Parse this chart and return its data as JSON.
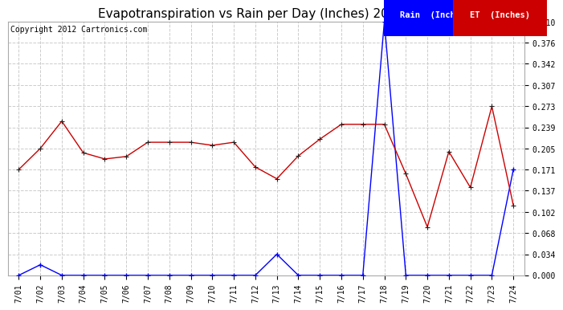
{
  "title": "Evapotranspiration vs Rain per Day (Inches) 20120725",
  "copyright": "Copyright 2012 Cartronics.com",
  "dates": [
    "7/01",
    "7/02",
    "7/03",
    "7/04",
    "7/05",
    "7/06",
    "7/07",
    "7/08",
    "7/09",
    "7/10",
    "7/11",
    "7/12",
    "7/13",
    "7/14",
    "7/15",
    "7/16",
    "7/17",
    "7/18",
    "7/19",
    "7/20",
    "7/21",
    "7/22",
    "7/23",
    "7/24"
  ],
  "rain": [
    0.0,
    0.017,
    0.0,
    0.0,
    0.0,
    0.0,
    0.0,
    0.0,
    0.0,
    0.0,
    0.0,
    0.0,
    0.034,
    0.0,
    0.0,
    0.0,
    0.0,
    0.41,
    0.0,
    0.0,
    0.0,
    0.0,
    0.0,
    0.171
  ],
  "et": [
    0.171,
    0.205,
    0.249,
    0.198,
    0.188,
    0.192,
    0.215,
    0.215,
    0.215,
    0.21,
    0.215,
    0.175,
    0.156,
    0.193,
    0.22,
    0.244,
    0.244,
    0.244,
    0.164,
    0.078,
    0.2,
    0.142,
    0.273,
    0.113
  ],
  "rain_color": "#0000ff",
  "et_color": "#cc0000",
  "bg_color": "#ffffff",
  "grid_color": "#cccccc",
  "ylim": [
    0.0,
    0.41
  ],
  "yticks": [
    0.0,
    0.034,
    0.068,
    0.102,
    0.137,
    0.171,
    0.205,
    0.239,
    0.273,
    0.307,
    0.342,
    0.376,
    0.41
  ],
  "legend_rain_bg": "#0000ff",
  "legend_et_bg": "#cc0000",
  "legend_rain_label": "Rain  (Inches)",
  "legend_et_label": "ET  (Inches)",
  "title_fontsize": 11,
  "copyright_fontsize": 7,
  "tick_fontsize": 7,
  "legend_fontsize": 7.5
}
